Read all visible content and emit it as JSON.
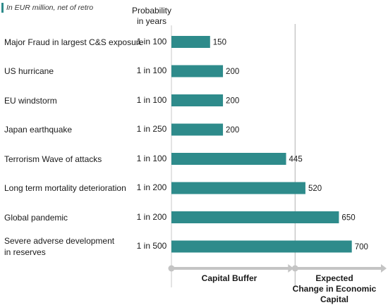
{
  "subtitle": "In EUR million, net of retro",
  "prob_header": [
    "Probability",
    "in years"
  ],
  "chart_data": {
    "type": "bar",
    "orientation": "horizontal",
    "categories": [
      "Major Fraud in largest C&S exposure",
      "US hurricane",
      "EU windstorm",
      "Japan earthquake",
      "Terrorism  Wave of attacks",
      "Long term mortality deterioration",
      "Global pandemic",
      "Severe adverse development in reserves"
    ],
    "label_lines": [
      [
        "Major Fraud in largest C&S exposure"
      ],
      [
        "US hurricane"
      ],
      [
        "EU windstorm"
      ],
      [
        "Japan earthquake"
      ],
      [
        "Terrorism  Wave of attacks"
      ],
      [
        "Long term mortality deterioration"
      ],
      [
        "Global pandemic"
      ],
      [
        "Severe adverse development",
        "in reserves"
      ]
    ],
    "probabilities": [
      "1 in 100",
      "1 in 100",
      "1 in 100",
      "1 in 250",
      "1 in 100",
      "1 in 200",
      "1 in 200",
      "1 in 500"
    ],
    "values": [
      150,
      200,
      200,
      200,
      445,
      520,
      650,
      700
    ],
    "xlim": [
      0,
      835
    ],
    "threshold": 480,
    "bar_color": "#2e8b8b",
    "grid": false,
    "bottom_labels": {
      "left": "Capital Buffer",
      "right": [
        "Expected",
        "Change in Economic Capital"
      ]
    }
  }
}
